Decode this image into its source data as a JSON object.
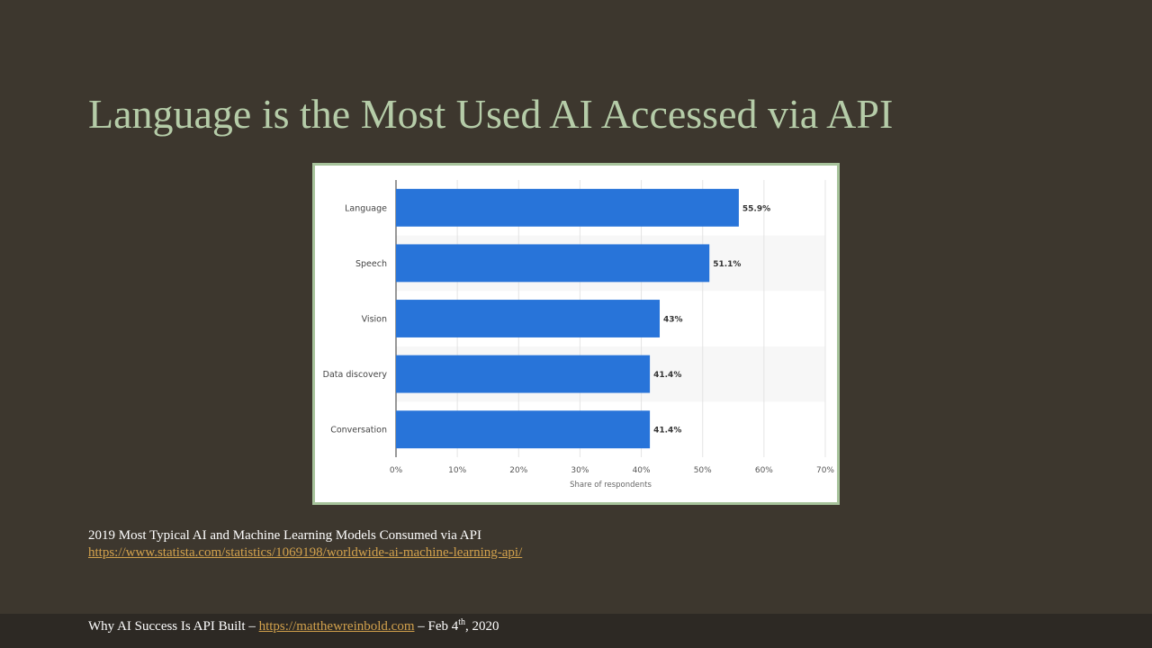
{
  "slide": {
    "title": "Language is the Most Used AI Accessed via API"
  },
  "caption": {
    "line1": "2019 Most Typical AI and Machine Learning Models Consumed via API",
    "link": "https://www.statista.com/statistics/1069198/worldwide-ai-machine-learning-api/"
  },
  "footer": {
    "prefix": "Why AI Success  Is API Built – ",
    "link": "https://matthewreinbold.com",
    "date_pre": "  – Feb 4",
    "date_sup": "th",
    "date_post": ", 2020"
  },
  "colors": {
    "background": "#3d372e",
    "title": "#b5cca8",
    "bar": "#2874d9",
    "frame_border": "#a7c39b",
    "link": "#d2a14c",
    "footer_bar": "#2d2924"
  },
  "chart_data": {
    "type": "bar",
    "orientation": "horizontal",
    "categories": [
      "Language",
      "Speech",
      "Vision",
      "Data discovery",
      "Conversation"
    ],
    "values": [
      55.9,
      51.1,
      43,
      41.4,
      41.4
    ],
    "value_labels": [
      "55.9%",
      "51.1%",
      "43%",
      "41.4%",
      "41.4%"
    ],
    "xlim": [
      0,
      70
    ],
    "xticks": [
      0,
      10,
      20,
      30,
      40,
      50,
      60,
      70
    ],
    "xtick_labels": [
      "0%",
      "10%",
      "20%",
      "30%",
      "40%",
      "50%",
      "60%",
      "70%"
    ],
    "xlabel": "Share of respondents",
    "ylabel": "",
    "grid": "vertical",
    "legend": "none"
  }
}
